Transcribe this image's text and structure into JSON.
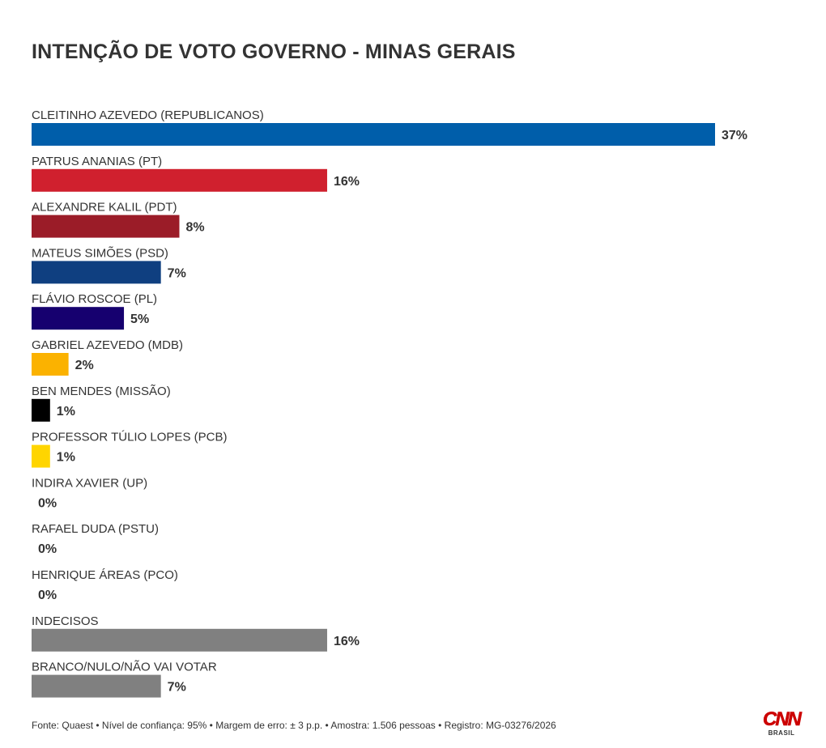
{
  "chart_data": {
    "type": "bar",
    "orientation": "horizontal",
    "title": "INTENÇÃO DE VOTO GOVERNO - MINAS GERAIS",
    "unit": "%",
    "categories": [
      "CLEITINHO AZEVEDO (REPUBLICANOS)",
      "PATRUS ANANIAS (PT)",
      "ALEXANDRE KALIL (PDT)",
      "MATEUS SIMÕES (PSD)",
      "FLÁVIO ROSCOE (PL)",
      "GABRIEL AZEVEDO (MDB)",
      "BEN MENDES (MISSÃO)",
      "PROFESSOR TÚLIO LOPES (PCB)",
      "INDIRA XAVIER (UP)",
      "RAFAEL DUDA (PSTU)",
      "HENRIQUE ÁREAS (PCO)",
      "INDECISOS",
      "BRANCO/NULO/NÃO VAI VOTAR"
    ],
    "values": [
      37,
      16,
      8,
      7,
      5,
      2,
      1,
      1,
      0,
      0,
      0,
      16,
      7
    ],
    "value_labels": [
      "37%",
      "16%",
      "8%",
      "7%",
      "5%",
      "2%",
      "1%",
      "1%",
      "0%",
      "0%",
      "0%",
      "16%",
      "7%"
    ],
    "colors": [
      "#005eaa",
      "#d0202e",
      "#9b1c28",
      "#0f3f80",
      "#16006f",
      "#fbb200",
      "#000000",
      "#ffd500",
      "#cccccc",
      "#cccccc",
      "#cccccc",
      "#808080",
      "#808080"
    ],
    "xlim": [
      0,
      37
    ],
    "grid": false,
    "legend": "none"
  },
  "footer": "Fonte: Quaest • Nível de confiança: 95% • Margem de erro: ± 3 p.p. • Amostra: 1.506 pessoas • Registro: MG-03276/2026",
  "logo": {
    "main": "CNN",
    "sub": "BRASIL",
    "color": "#cc0000"
  }
}
